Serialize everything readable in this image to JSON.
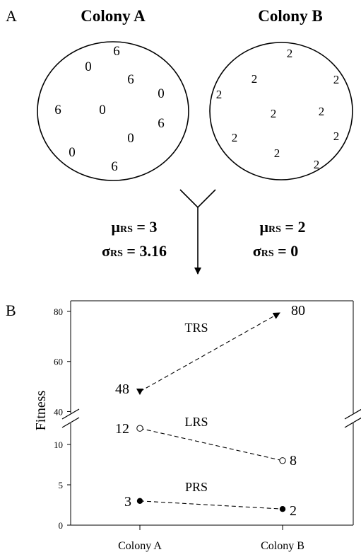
{
  "panel_a": {
    "label": "A",
    "colonies": [
      {
        "title": "Colony A",
        "values": [
          "6",
          "0",
          "6",
          "0",
          "6",
          "0",
          "6",
          "0",
          "0",
          "6"
        ]
      },
      {
        "title": "Colony B",
        "values": [
          "2",
          "2",
          "2",
          "2",
          "2",
          "2",
          "2",
          "2",
          "2",
          "2"
        ]
      }
    ],
    "stats": [
      {
        "mu_symbol": "μ",
        "sub": "RS",
        "mu_value": " = 3",
        "sigma_symbol": "σ",
        "sigma_value": " = 3.16"
      },
      {
        "mu_symbol": "μ",
        "sub": "RS",
        "mu_value": " = 2",
        "sigma_symbol": "σ",
        "sigma_value": " = 0"
      }
    ]
  },
  "panel_b": {
    "label": "B",
    "chart_data": {
      "type": "line",
      "categories": [
        "Colony A",
        "Colony B"
      ],
      "ylabel": "Fitness",
      "y_ticks_lower": [
        0,
        5,
        10
      ],
      "y_ticks_upper": [
        40,
        60,
        80
      ],
      "axis_break": [
        12.5,
        39
      ],
      "grid": false,
      "series": [
        {
          "name": "TRS",
          "values": [
            48,
            80
          ],
          "point_labels": [
            "48",
            "80"
          ],
          "marker": "filled-triangle",
          "style": "dashed-arrow"
        },
        {
          "name": "LRS",
          "values": [
            12,
            8
          ],
          "point_labels": [
            "12",
            "8"
          ],
          "marker": "open-circle",
          "style": "dashed"
        },
        {
          "name": "PRS",
          "values": [
            3,
            2
          ],
          "point_labels": [
            "3",
            "2"
          ],
          "marker": "filled-circle",
          "style": "dashed"
        }
      ]
    }
  }
}
